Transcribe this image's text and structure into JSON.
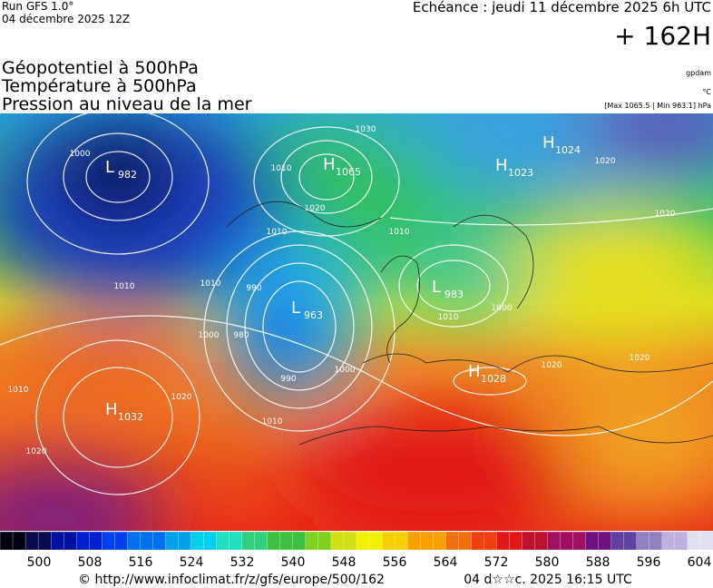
{
  "header": {
    "run": "Run GFS 1.0°",
    "run_date": "04 décembre 2025 12Z",
    "valid": "Echéance : jeudi 11 décembre 2025 6h UTC",
    "lead": "+ 162H"
  },
  "titles": [
    "Géopotentiel à 500hPa",
    "Température à 500hPa",
    "Pression au niveau de la mer"
  ],
  "units": {
    "geopotential": "gpdam",
    "temperature": "°C",
    "pressure_range": "[Max 1065.5 | Min 963.1] hPa"
  },
  "centers": [
    {
      "kind": "L",
      "value": "982"
    },
    {
      "kind": "H",
      "value": "1065"
    },
    {
      "kind": "L",
      "value": "963"
    },
    {
      "kind": "H",
      "value": "1023"
    },
    {
      "kind": "H",
      "value": "1024"
    },
    {
      "kind": "H",
      "value": "1028"
    },
    {
      "kind": "H",
      "value": "1032"
    },
    {
      "kind": "L",
      "value": "983"
    }
  ],
  "isobar_labels": [
    "1000",
    "1030",
    "1010",
    "1020",
    "1010",
    "1010",
    "1010",
    "1010",
    "1000",
    "990",
    "980",
    "990",
    "1000",
    "1010",
    "1020",
    "1020",
    "1020",
    "1020",
    "1010",
    "1000",
    "1020",
    "1010",
    "1020"
  ],
  "colorbar_labels": [
    500,
    508,
    516,
    524,
    532,
    540,
    548,
    556,
    564,
    572,
    580,
    588,
    596,
    604
  ],
  "footer": {
    "url": "© http://www.infoclimat.fr/z/gfs/europe/500/162",
    "date": "04 d☆☆c. 2025 16:15 UTC"
  }
}
